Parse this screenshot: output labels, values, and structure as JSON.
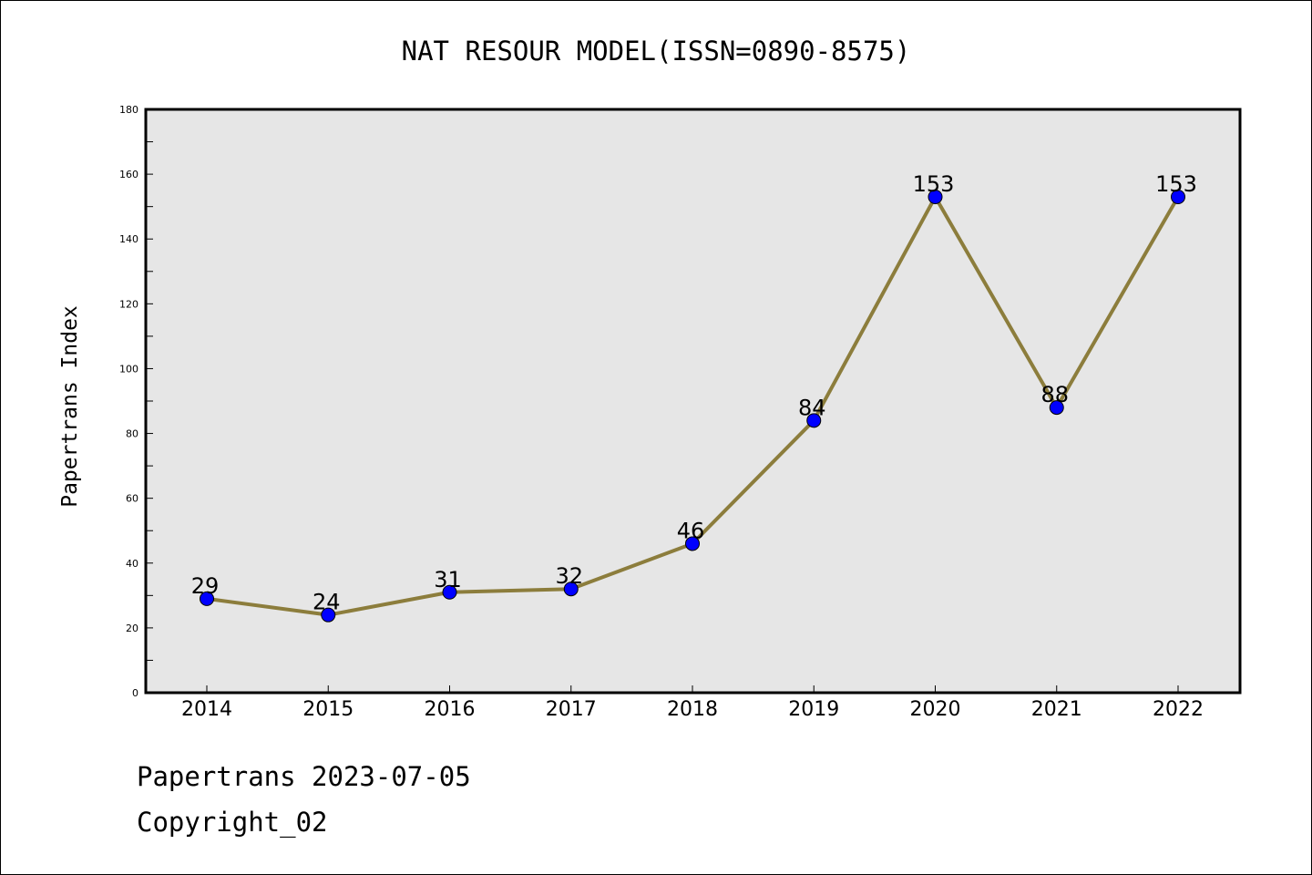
{
  "footer": {
    "line1": "Papertrans 2023-07-05",
    "line2": "Copyright_02"
  },
  "colors": {
    "plot_background": "#e6e6e6",
    "line": "#8c7d3c",
    "marker": "#0000ff"
  },
  "chart_data": {
    "type": "line",
    "title": "NAT RESOUR MODEL(ISSN=0890-8575)",
    "xlabel": "",
    "ylabel": "Papertrans Index",
    "categories": [
      "2014",
      "2015",
      "2016",
      "2017",
      "2018",
      "2019",
      "2020",
      "2021",
      "2022"
    ],
    "series": [
      {
        "values": [
          29,
          24,
          31,
          32,
          46,
          84,
          153,
          88,
          153
        ]
      }
    ],
    "data_labels": [
      "29",
      "24",
      "31",
      "32",
      "46",
      "84",
      "153",
      "88",
      "153"
    ],
    "ylim": [
      0,
      180
    ],
    "yticks": [
      0,
      20,
      40,
      60,
      80,
      100,
      120,
      140,
      160,
      180
    ],
    "yminor_step": 10,
    "grid": false,
    "legend": "none"
  }
}
